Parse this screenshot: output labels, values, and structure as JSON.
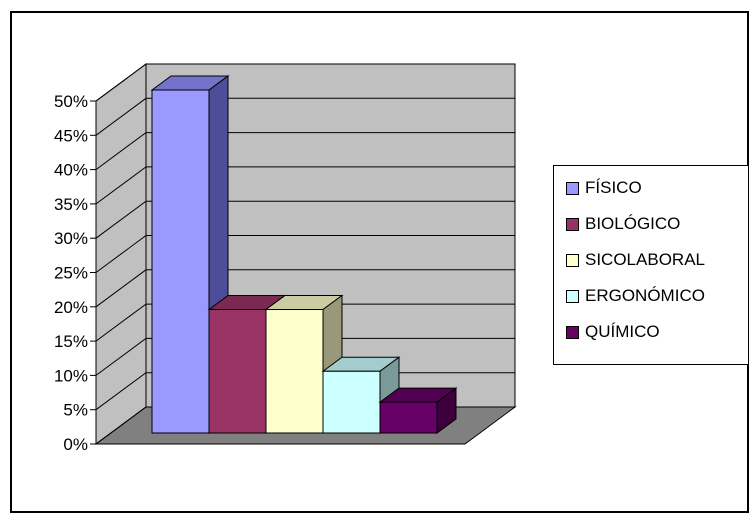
{
  "chart_data": {
    "type": "bar",
    "title": "",
    "xlabel": "",
    "ylabel": "",
    "categories": [
      "FÍSICO",
      "BIOLÓGICO",
      "SICOLABORAL",
      "ERGONÓMICO",
      "QUÍMICO"
    ],
    "values": [
      50,
      18,
      18,
      9,
      4.5
    ],
    "ylim": [
      0,
      50
    ],
    "yticks": [
      "0%",
      "5%",
      "10%",
      "15%",
      "20%",
      "25%",
      "30%",
      "35%",
      "40%",
      "45%",
      "50%"
    ],
    "grid": true,
    "legend_position": "right",
    "colors": [
      {
        "front": "#9999ff",
        "top": "#7373cc",
        "side": "#4d4d99"
      },
      {
        "front": "#993366",
        "top": "#7a2952",
        "side": "#5c1f3d"
      },
      {
        "front": "#ffffcc",
        "top": "#cccca3",
        "side": "#99997a"
      },
      {
        "front": "#ccffff",
        "top": "#a3cccc",
        "side": "#7a9999"
      },
      {
        "front": "#660066",
        "top": "#520052",
        "side": "#3d003d"
      }
    ],
    "wall_color": "#c0c0c0",
    "floor_color": "#808080"
  },
  "legend": {
    "items": [
      {
        "label": "FÍSICO",
        "color": "#9999ff"
      },
      {
        "label": "BIOLÓGICO",
        "color": "#993366"
      },
      {
        "label": "SICOLABORAL",
        "color": "#ffffcc"
      },
      {
        "label": "ERGONÓMICO",
        "color": "#ccffff"
      },
      {
        "label": "QUÍMICO",
        "color": "#660066"
      }
    ]
  }
}
